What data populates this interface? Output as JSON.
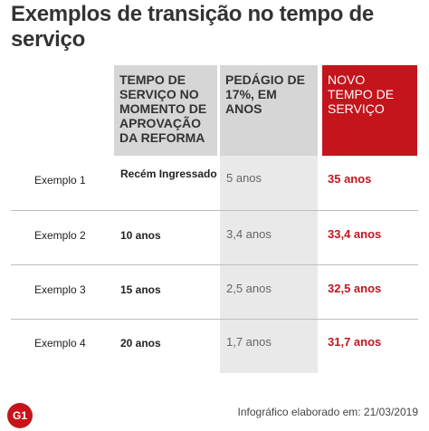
{
  "title": "Exemplos de transição no tempo de serviço",
  "headers": {
    "tempo": "Tempo de serviço no momento de aprovação da reforma",
    "pedagio": "Pedágio de 17%, em anos",
    "novo": "Novo tempo de serviço"
  },
  "rows": [
    {
      "label": "Exemplo 1",
      "tempo": "Recém Ingressado",
      "pedagio": "5 anos",
      "novo": "35 anos"
    },
    {
      "label": "Exemplo 2",
      "tempo": "10 anos",
      "pedagio": "3,4 anos",
      "novo": "33,4 anos"
    },
    {
      "label": "Exemplo 3",
      "tempo": "15 anos",
      "pedagio": "2,5 anos",
      "novo": "32,5 anos"
    },
    {
      "label": "Exemplo 4",
      "tempo": "20 anos",
      "pedagio": "1,7 anos",
      "novo": "31,7 anos"
    }
  ],
  "footer": {
    "logo": "G1",
    "credit": "Infográfico elaborado em: 21/03/2019"
  },
  "colors": {
    "accent": "#c4151c",
    "header_gray": "#d6d6d6",
    "column_shade": "#e9e9e9"
  }
}
